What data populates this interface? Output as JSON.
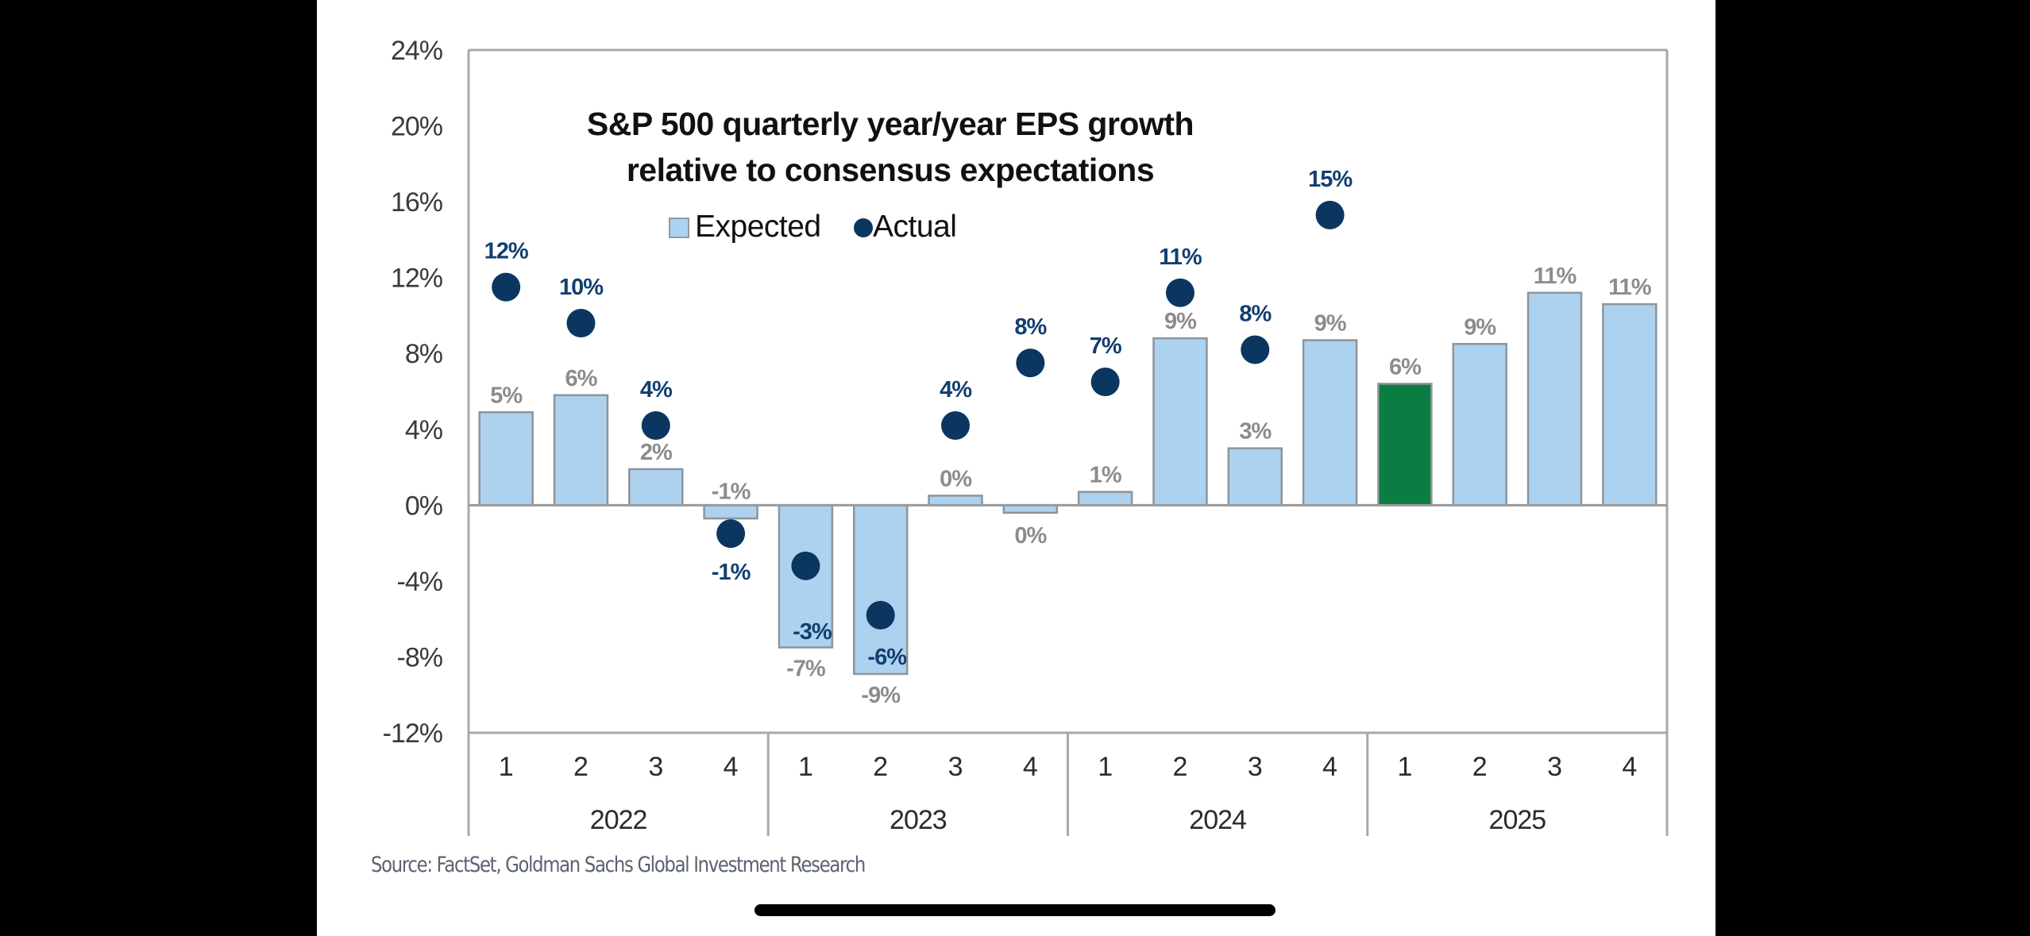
{
  "chart_data": {
    "type": "bar",
    "title": "S&P 500 quarterly year/year EPS growth relative to consensus expectations",
    "title_lines": [
      "S&P 500 quarterly  year/year EPS growth",
      "relative to consensus expectations"
    ],
    "xlabel": "",
    "ylabel": "",
    "ylim": [
      -12,
      24
    ],
    "yticks": [
      -12,
      -8,
      -4,
      0,
      4,
      8,
      12,
      16,
      20,
      24
    ],
    "ytick_labels": [
      "-12%",
      "-8%",
      "-4%",
      "0%",
      "4%",
      "8%",
      "12%",
      "16%",
      "20%",
      "24%"
    ],
    "grid": false,
    "legend_position": "top-center",
    "legend": [
      {
        "name": "Expected",
        "marker": "square",
        "color": "#acd2f0"
      },
      {
        "name": "Actual",
        "marker": "circle",
        "color": "#0b3660"
      }
    ],
    "categories": [
      "2022 Q1",
      "2022 Q2",
      "2022 Q3",
      "2022 Q4",
      "2023 Q1",
      "2023 Q2",
      "2023 Q3",
      "2023 Q4",
      "2024 Q1",
      "2024 Q2",
      "2024 Q3",
      "2024 Q4",
      "2025 Q1",
      "2025 Q2",
      "2025 Q3",
      "2025 Q4"
    ],
    "quarter_labels": [
      "1",
      "2",
      "3",
      "4",
      "1",
      "2",
      "3",
      "4",
      "1",
      "2",
      "3",
      "4",
      "1",
      "2",
      "3",
      "4"
    ],
    "year_groups": [
      {
        "label": "2022",
        "span": 4
      },
      {
        "label": "2023",
        "span": 4
      },
      {
        "label": "2024",
        "span": 4
      },
      {
        "label": "2025",
        "span": 4
      }
    ],
    "series": [
      {
        "name": "Expected",
        "kind": "bar",
        "color": "#acd2f0",
        "values": [
          4.9,
          5.8,
          1.9,
          -0.7,
          -7.5,
          -8.9,
          0.5,
          -0.4,
          0.7,
          8.8,
          3.0,
          8.7,
          6.4,
          8.5,
          11.2,
          10.6
        ],
        "labels": [
          "5%",
          "6%",
          "2%",
          "-1%",
          "-7%",
          "-9%",
          "0%",
          "0%",
          "1%",
          "9%",
          "3%",
          "9%",
          "6%",
          "9%",
          "11%",
          "11%"
        ],
        "highlight_index": 12,
        "highlight_color": "#0a7d43"
      },
      {
        "name": "Actual",
        "kind": "scatter",
        "color": "#0b3660",
        "values": [
          11.5,
          9.6,
          4.2,
          -1.5,
          -3.2,
          -5.8,
          4.2,
          7.5,
          6.5,
          11.2,
          8.2,
          15.3,
          null,
          null,
          null,
          null
        ],
        "labels": [
          "12%",
          "10%",
          "4%",
          "-1%",
          "-3%",
          "-6%",
          "4%",
          "8%",
          "7%",
          "11%",
          "8%",
          "15%",
          null,
          null,
          null,
          null
        ]
      }
    ]
  },
  "footer": {
    "source": "Source: FactSet, Goldman Sachs Global Investment Research"
  }
}
